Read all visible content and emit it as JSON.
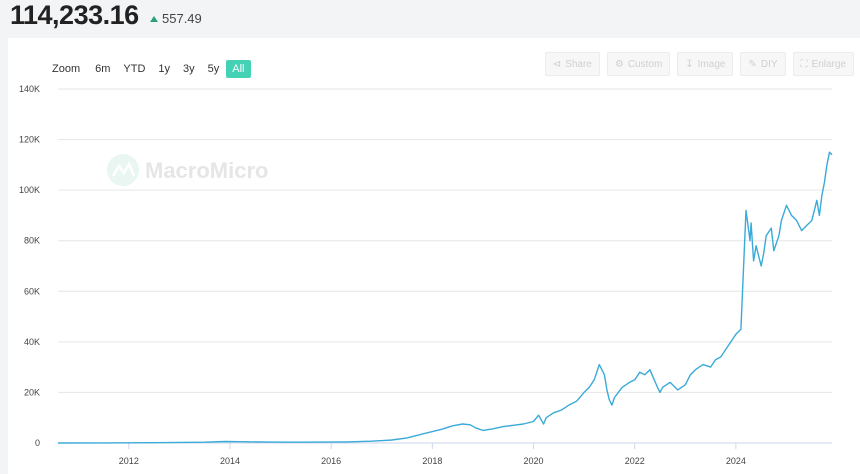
{
  "header": {
    "price": "114,233.16",
    "change": "557.49"
  },
  "range": {
    "zoom_label": "Zoom",
    "options": [
      "6m",
      "YTD",
      "1y",
      "3y",
      "5y",
      "All"
    ],
    "active": "All"
  },
  "toolbar": [
    {
      "label": "Share",
      "icon": "share-icon"
    },
    {
      "label": "Custom",
      "icon": "gear-icon"
    },
    {
      "label": "Image",
      "icon": "download-icon"
    },
    {
      "label": "DIY",
      "icon": "pencil-icon"
    },
    {
      "label": "Enlarge",
      "icon": "expand-icon"
    }
  ],
  "watermark": "MacroMicro",
  "colors": {
    "line": "#3aaad8",
    "active": "#45d1b4",
    "up": "#2aa07a"
  },
  "chart_data": {
    "type": "line",
    "title": "",
    "xlabel": "",
    "ylabel": "",
    "ylim": [
      0,
      140000
    ],
    "xlim": [
      2010.6,
      2025.9
    ],
    "yticks": [
      0,
      20000,
      40000,
      60000,
      80000,
      100000,
      120000,
      140000
    ],
    "ytick_labels": [
      "0",
      "20K",
      "40K",
      "60K",
      "80K",
      "100K",
      "120K",
      "140K"
    ],
    "xticks": [
      2012,
      2014,
      2016,
      2018,
      2020,
      2022,
      2024
    ],
    "xtick_labels": [
      "2012",
      "2014",
      "2016",
      "2018",
      "2020",
      "2022",
      "2024"
    ],
    "grid": true,
    "legend": "none",
    "series": [
      {
        "x": [
          2010.6,
          2011.5,
          2012.5,
          2013.5,
          2013.9,
          2014.2,
          2014.8,
          2015.3,
          2015.8,
          2016.3,
          2016.8,
          2017.2,
          2017.5,
          2017.8,
          2018.0,
          2018.2,
          2018.4,
          2018.6,
          2018.75,
          2018.85,
          2019.0,
          2019.2,
          2019.4,
          2019.6,
          2019.8,
          2020.0,
          2020.1,
          2020.2,
          2020.25,
          2020.4,
          2020.55,
          2020.7,
          2020.85,
          2021.0,
          2021.1,
          2021.2,
          2021.3,
          2021.4,
          2021.45,
          2021.5,
          2021.55,
          2021.6,
          2021.75,
          2021.9,
          2022.0,
          2022.1,
          2022.2,
          2022.3,
          2022.45,
          2022.5,
          2022.55,
          2022.7,
          2022.85,
          2023.0,
          2023.1,
          2023.2,
          2023.35,
          2023.5,
          2023.6,
          2023.7,
          2023.8,
          2023.9,
          2024.0,
          2024.1,
          2024.2,
          2024.28,
          2024.3,
          2024.35,
          2024.4,
          2024.5,
          2024.55,
          2024.6,
          2024.7,
          2024.75,
          2024.85,
          2024.9,
          2025.0,
          2025.1,
          2025.2,
          2025.3,
          2025.4,
          2025.5,
          2025.55,
          2025.6,
          2025.65,
          2025.7,
          2025.75,
          2025.8,
          2025.85,
          2025.9
        ],
        "y": [
          0,
          50,
          100,
          300,
          600,
          500,
          350,
          300,
          350,
          450,
          700,
          1200,
          2000,
          3500,
          4500,
          5500,
          6800,
          7500,
          7200,
          6000,
          5000,
          5600,
          6500,
          7000,
          7500,
          8500,
          11000,
          7500,
          10000,
          12000,
          13000,
          15000,
          16500,
          20000,
          22000,
          25000,
          31000,
          27000,
          21000,
          17000,
          15000,
          18000,
          22000,
          24000,
          25000,
          28000,
          27000,
          29000,
          22000,
          20000,
          22000,
          24000,
          21000,
          23000,
          27000,
          29000,
          31000,
          30000,
          33000,
          34000,
          37000,
          40000,
          43000,
          45000,
          92000,
          80000,
          87000,
          72000,
          78000,
          70000,
          75000,
          82000,
          85000,
          76000,
          82000,
          88000,
          94000,
          90000,
          88000,
          84000,
          86000,
          88000,
          92000,
          96000,
          90000,
          98000,
          103000,
          110000,
          115000,
          114000
        ]
      }
    ]
  }
}
